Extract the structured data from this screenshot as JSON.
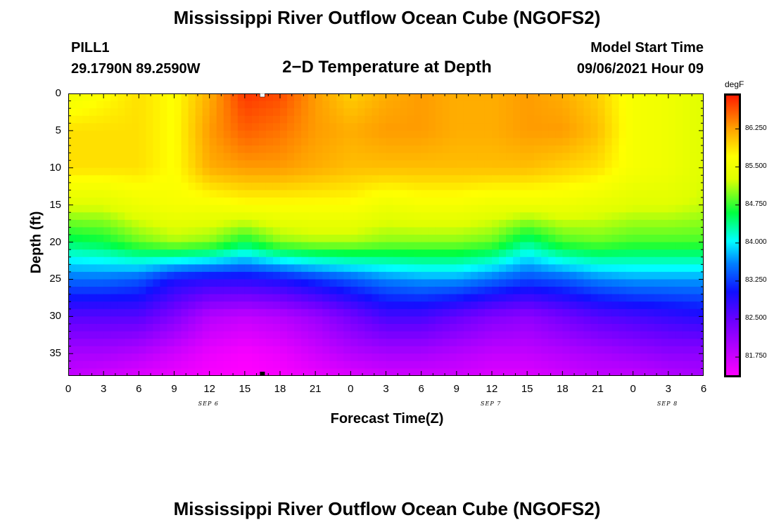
{
  "header": {
    "title": "Mississippi River Outflow Ocean Cube (NGOFS2)",
    "station": "PILL1",
    "coords": "29.1790N  89.2590W",
    "subtitle": "2−D Temperature at Depth",
    "model_start_label": "Model Start Time",
    "model_start_value": "09/06/2021 Hour 09"
  },
  "footer_title": "Mississippi River Outflow Ocean Cube (NGOFS2)",
  "colorbar": {
    "unit": "degF",
    "ticks": [
      {
        "label": "86.250",
        "value": 86.25
      },
      {
        "label": "85.500",
        "value": 85.5
      },
      {
        "label": "84.750",
        "value": 84.75
      },
      {
        "label": "84.000",
        "value": 84.0
      },
      {
        "label": "83.250",
        "value": 83.25
      },
      {
        "label": "82.500",
        "value": 82.5
      },
      {
        "label": "81.750",
        "value": 81.75
      }
    ],
    "range": [
      81.35,
      86.95
    ]
  },
  "chart_data": {
    "type": "heatmap",
    "title": "2−D Temperature at Depth",
    "xlabel": "Forecast Time(Z)",
    "ylabel": "Depth (ft)",
    "unit": "degF",
    "x_range_hours": [
      0,
      54
    ],
    "y_range_ft": [
      0,
      38
    ],
    "y_inverted": true,
    "x_tick_labels": [
      "0",
      "3",
      "6",
      "9",
      "12",
      "15",
      "18",
      "21",
      "0",
      "3",
      "6",
      "9",
      "12",
      "15",
      "18",
      "21",
      "0",
      "3",
      "6"
    ],
    "y_ticks": [
      0,
      5,
      10,
      15,
      20,
      25,
      30,
      35
    ],
    "day_labels": [
      {
        "label": "SEP 6",
        "hour": 12
      },
      {
        "label": "SEP 7",
        "hour": 36
      },
      {
        "label": "SEP 8",
        "hour": 51
      }
    ],
    "current_time_hour": 16.5,
    "value_range": [
      81.35,
      86.95
    ],
    "time_hours": [
      0,
      3,
      6,
      9,
      12,
      15,
      18,
      21,
      24,
      27,
      30,
      33,
      36,
      39,
      42,
      45,
      48,
      51,
      54
    ],
    "depths_ft": [
      0,
      5,
      10,
      15,
      20,
      25,
      30,
      35,
      38
    ],
    "temperature_degF": [
      [
        85.5,
        85.7,
        85.9,
        85.7,
        86.2,
        86.8,
        86.7,
        86.3,
        86.0,
        86.2,
        86.3,
        86.2,
        86.2,
        86.3,
        86.2,
        86.0,
        85.6,
        85.5,
        85.3
      ],
      [
        85.9,
        85.9,
        85.9,
        85.7,
        86.3,
        86.6,
        86.5,
        86.3,
        86.2,
        86.3,
        86.3,
        86.2,
        86.2,
        86.3,
        86.3,
        86.1,
        85.6,
        85.5,
        85.3
      ],
      [
        85.9,
        85.9,
        85.9,
        85.7,
        86.2,
        86.3,
        86.3,
        86.2,
        86.1,
        86.1,
        86.1,
        86.1,
        86.1,
        86.1,
        86.0,
        85.9,
        85.6,
        85.5,
        85.3
      ],
      [
        85.3,
        85.3,
        85.5,
        85.6,
        85.6,
        85.7,
        85.7,
        85.7,
        85.7,
        85.5,
        85.6,
        85.6,
        85.5,
        85.5,
        85.5,
        85.4,
        85.3,
        85.3,
        85.2
      ],
      [
        84.5,
        84.6,
        84.9,
        85.1,
        85.0,
        84.6,
        85.0,
        85.1,
        85.1,
        85.0,
        85.0,
        85.0,
        84.9,
        84.4,
        84.8,
        84.9,
        84.8,
        84.8,
        84.8
      ],
      [
        83.5,
        83.5,
        83.4,
        83.0,
        82.9,
        82.9,
        83.0,
        83.2,
        83.4,
        83.6,
        83.7,
        83.7,
        83.5,
        83.3,
        83.4,
        83.6,
        83.7,
        83.7,
        83.7
      ],
      [
        82.6,
        82.6,
        82.6,
        82.3,
        81.9,
        81.8,
        81.9,
        82.1,
        82.4,
        82.7,
        82.7,
        82.5,
        82.3,
        82.2,
        82.4,
        82.6,
        82.7,
        82.8,
        82.9
      ],
      [
        82.0,
        82.0,
        81.9,
        81.7,
        81.5,
        81.4,
        81.5,
        81.7,
        81.9,
        82.0,
        82.0,
        81.9,
        81.8,
        81.8,
        81.9,
        82.0,
        82.1,
        82.2,
        82.2
      ],
      [
        81.8,
        81.7,
        81.6,
        81.5,
        81.4,
        81.35,
        81.4,
        81.5,
        81.6,
        81.7,
        81.7,
        81.7,
        81.6,
        81.6,
        81.7,
        81.8,
        81.8,
        81.9,
        82.0
      ]
    ]
  }
}
